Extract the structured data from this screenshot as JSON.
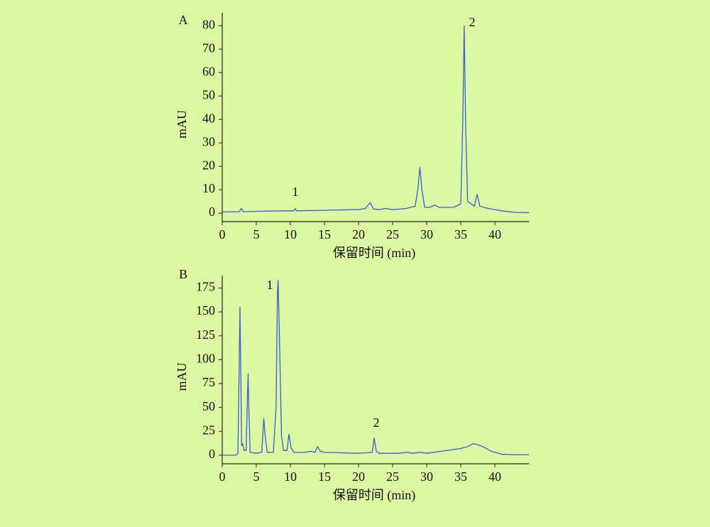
{
  "chart_data": [
    {
      "type": "line",
      "panel_label": "A",
      "ylabel": "mAU",
      "xlabel": "保留时间 (min)",
      "annotations": [
        "1",
        "2"
      ],
      "color": "#3b5bdb",
      "x": [
        0,
        2.5,
        2.8,
        3.1,
        5,
        10,
        10.5,
        10.7,
        10.9,
        15,
        19,
        20,
        21,
        21.7,
        22.2,
        23,
        24,
        25,
        27,
        28.3,
        28.7,
        29,
        29.3,
        29.7,
        30.5,
        31.2,
        31.8,
        34,
        35,
        35.3,
        35.5,
        35.7,
        36,
        37,
        37.4,
        37.8,
        39,
        40,
        41,
        43,
        45
      ],
      "values": [
        0.5,
        0.6,
        2,
        0.6,
        0.8,
        1,
        1,
        2,
        1,
        1.2,
        1.5,
        1.5,
        2,
        4.5,
        1.8,
        1.5,
        2,
        1.5,
        2,
        3,
        10,
        19.5,
        10,
        2.5,
        2.5,
        3.5,
        2.5,
        2.5,
        4,
        40,
        80,
        40,
        5,
        3,
        8,
        3,
        2,
        1.5,
        1,
        0.3,
        0.2
      ],
      "xlim": [
        0,
        45
      ],
      "ylim": [
        -3.6,
        85.5
      ],
      "xticks": [
        0,
        5,
        10,
        15,
        20,
        25,
        30,
        35,
        40
      ],
      "yticks": [
        0,
        10,
        20,
        30,
        40,
        50,
        60,
        70,
        80
      ]
    },
    {
      "type": "line",
      "panel_label": "B",
      "ylabel": "mAU",
      "xlabel": "保留时间 (min)",
      "annotations": [
        "1",
        "2"
      ],
      "color": "#3b5bdb",
      "x": [
        0,
        2,
        2.3,
        2.5,
        2.6,
        2.7,
        2.85,
        3,
        3.2,
        3.5,
        3.7,
        3.8,
        3.9,
        4.1,
        5,
        5.8,
        6.1,
        6.3,
        6.6,
        7.5,
        7.9,
        8.1,
        8.2,
        8.4,
        8.7,
        9,
        9.5,
        9.8,
        10.1,
        10.5,
        12,
        13,
        13.6,
        14,
        14.4,
        15,
        20,
        22,
        22.3,
        22.6,
        23,
        26,
        27,
        28,
        29,
        30,
        32,
        34,
        35,
        36,
        36.8,
        37.5,
        38.5,
        39.5,
        41,
        43,
        45
      ],
      "values": [
        0,
        0,
        2,
        100,
        155,
        100,
        10,
        12,
        5,
        5,
        60,
        85,
        50,
        3,
        2,
        3,
        38,
        20,
        3,
        3,
        50,
        170,
        183,
        120,
        20,
        5,
        5,
        22,
        8,
        3,
        3,
        4,
        3,
        9,
        4,
        3,
        2,
        3,
        18,
        4,
        2,
        2,
        3,
        2,
        3,
        2,
        4,
        6,
        7,
        9,
        12,
        11,
        8,
        4,
        1,
        0.5,
        0.5
      ],
      "xlim": [
        0,
        45
      ],
      "ylim": [
        -9,
        188
      ],
      "xticks": [
        0,
        5,
        10,
        15,
        20,
        25,
        30,
        35,
        40
      ],
      "yticks": [
        0,
        25,
        50,
        75,
        100,
        125,
        150,
        175
      ]
    }
  ]
}
